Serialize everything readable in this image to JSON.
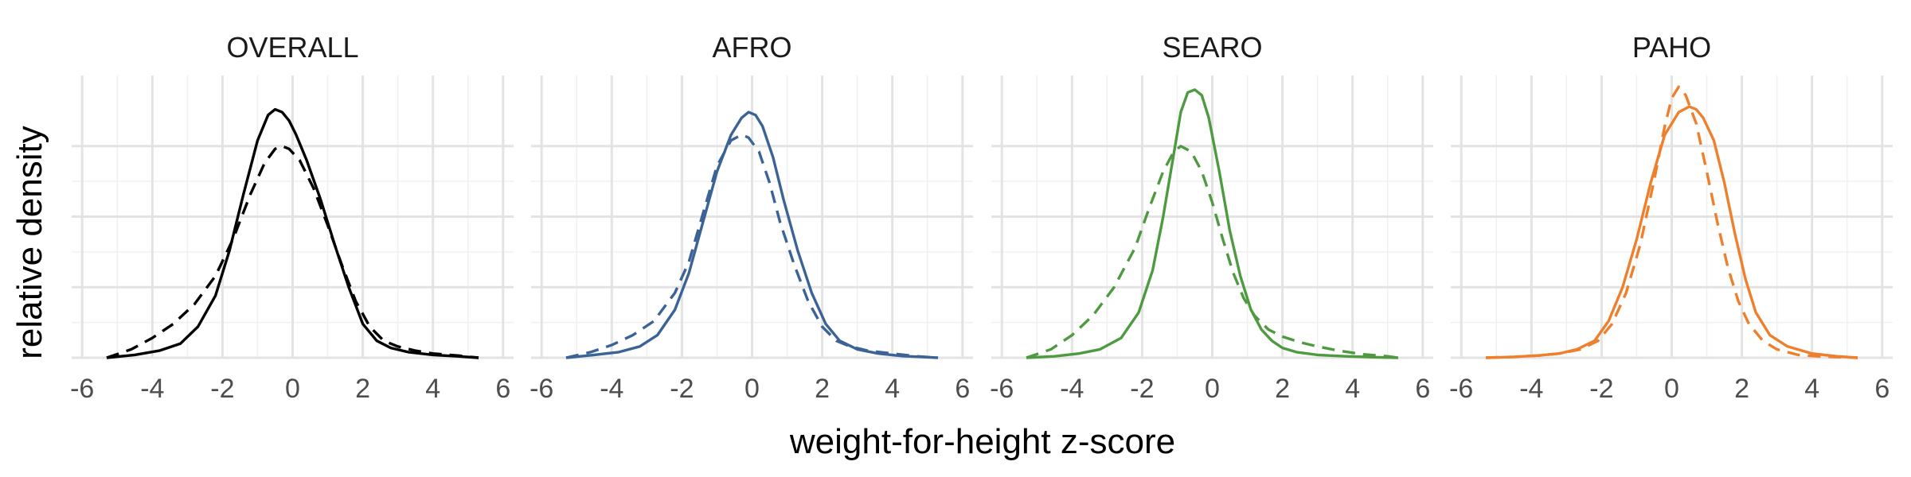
{
  "chart_data": {
    "type": "line",
    "xlabel": "weight-for-height z-score",
    "ylabel": "relative density",
    "xlim": [
      -6.3,
      6.3
    ],
    "ylim": [
      0,
      1
    ],
    "x_ticks": [
      -6,
      -4,
      -2,
      0,
      2,
      4,
      6
    ],
    "x_tick_labels": [
      "-6",
      "-4",
      "-2",
      "0",
      "2",
      "4",
      "6"
    ],
    "y_ticks": [
      0.25,
      0.5,
      0.75
    ],
    "y_tick_labels_shown": false,
    "grid": true,
    "legend": "none",
    "panels": [
      {
        "title": "OVERALL",
        "color": "#000000",
        "series": [
          {
            "style": "solid",
            "x": [
              -5.3,
              -4.5,
              -3.8,
              -3.2,
              -2.7,
              -2.2,
              -1.8,
              -1.4,
              -1.0,
              -0.7,
              -0.5,
              -0.3,
              -0.1,
              0.1,
              0.4,
              0.8,
              1.2,
              1.6,
              2.0,
              2.4,
              2.8,
              3.3,
              4.0,
              4.7,
              5.3
            ],
            "y": [
              0.0,
              0.01,
              0.025,
              0.05,
              0.11,
              0.22,
              0.38,
              0.58,
              0.77,
              0.86,
              0.88,
              0.87,
              0.84,
              0.79,
              0.7,
              0.56,
              0.4,
              0.25,
              0.12,
              0.06,
              0.035,
              0.02,
              0.01,
              0.005,
              0.0
            ]
          },
          {
            "style": "dashed",
            "x": [
              -5.3,
              -4.6,
              -4.0,
              -3.4,
              -2.8,
              -2.2,
              -1.7,
              -1.2,
              -0.8,
              -0.5,
              -0.3,
              -0.1,
              0.2,
              0.6,
              1.0,
              1.4,
              1.8,
              2.2,
              2.6,
              3.0,
              3.5,
              4.0,
              4.7,
              5.3
            ],
            "y": [
              0.0,
              0.03,
              0.07,
              0.12,
              0.19,
              0.29,
              0.42,
              0.58,
              0.69,
              0.74,
              0.75,
              0.74,
              0.7,
              0.6,
              0.47,
              0.33,
              0.2,
              0.11,
              0.06,
              0.04,
              0.025,
              0.015,
              0.008,
              0.0
            ]
          }
        ]
      },
      {
        "title": "AFRO",
        "color": "#3c6396",
        "series": [
          {
            "style": "solid",
            "x": [
              -5.3,
              -4.5,
              -3.8,
              -3.2,
              -2.7,
              -2.2,
              -1.8,
              -1.4,
              -1.0,
              -0.6,
              -0.3,
              -0.1,
              0.1,
              0.3,
              0.6,
              0.9,
              1.3,
              1.7,
              2.1,
              2.5,
              3.0,
              3.6,
              4.3,
              5.0,
              5.3
            ],
            "y": [
              0.0,
              0.01,
              0.02,
              0.04,
              0.08,
              0.17,
              0.3,
              0.48,
              0.66,
              0.79,
              0.85,
              0.87,
              0.86,
              0.82,
              0.71,
              0.56,
              0.38,
              0.23,
              0.12,
              0.06,
              0.03,
              0.015,
              0.006,
              0.002,
              0.0
            ]
          },
          {
            "style": "dashed",
            "x": [
              -5.3,
              -4.6,
              -4.0,
              -3.4,
              -2.8,
              -2.2,
              -1.8,
              -1.4,
              -1.0,
              -0.6,
              -0.3,
              -0.1,
              0.2,
              0.5,
              0.8,
              1.2,
              1.6,
              2.0,
              2.4,
              2.8,
              3.3,
              4.0,
              4.7,
              5.3
            ],
            "y": [
              0.0,
              0.02,
              0.045,
              0.08,
              0.13,
              0.23,
              0.34,
              0.51,
              0.68,
              0.77,
              0.79,
              0.78,
              0.73,
              0.62,
              0.48,
              0.33,
              0.2,
              0.11,
              0.06,
              0.04,
              0.025,
              0.015,
              0.005,
              0.0
            ]
          }
        ]
      },
      {
        "title": "SEARO",
        "color": "#4e9a40",
        "series": [
          {
            "style": "solid",
            "x": [
              -5.3,
              -4.5,
              -3.8,
              -3.2,
              -2.6,
              -2.1,
              -1.7,
              -1.4,
              -1.1,
              -0.9,
              -0.7,
              -0.5,
              -0.3,
              -0.1,
              0.2,
              0.5,
              0.8,
              1.1,
              1.4,
              1.7,
              2.0,
              2.4,
              3.0,
              3.8,
              4.6,
              5.3
            ],
            "y": [
              0.0,
              0.005,
              0.015,
              0.03,
              0.07,
              0.16,
              0.31,
              0.5,
              0.72,
              0.87,
              0.94,
              0.95,
              0.93,
              0.85,
              0.66,
              0.45,
              0.29,
              0.17,
              0.1,
              0.06,
              0.035,
              0.02,
              0.01,
              0.005,
              0.002,
              0.0
            ]
          },
          {
            "style": "dashed",
            "x": [
              -5.3,
              -4.6,
              -4.0,
              -3.4,
              -2.8,
              -2.2,
              -1.8,
              -1.4,
              -1.1,
              -0.9,
              -0.6,
              -0.3,
              0.0,
              0.3,
              0.6,
              0.9,
              1.2,
              1.6,
              2.0,
              2.5,
              3.0,
              3.6,
              4.3,
              5.0,
              5.3
            ],
            "y": [
              0.0,
              0.03,
              0.08,
              0.15,
              0.25,
              0.39,
              0.53,
              0.66,
              0.73,
              0.75,
              0.73,
              0.66,
              0.55,
              0.42,
              0.3,
              0.21,
              0.15,
              0.1,
              0.075,
              0.055,
              0.04,
              0.025,
              0.012,
              0.005,
              0.0
            ]
          }
        ]
      },
      {
        "title": "PAHO",
        "color": "#ee7f2d",
        "series": [
          {
            "style": "solid",
            "x": [
              -5.3,
              -4.5,
              -3.8,
              -3.2,
              -2.7,
              -2.2,
              -1.8,
              -1.4,
              -1.0,
              -0.6,
              -0.2,
              0.2,
              0.5,
              0.7,
              0.9,
              1.2,
              1.5,
              1.8,
              2.1,
              2.4,
              2.8,
              3.3,
              4.0,
              4.7,
              5.3
            ],
            "y": [
              0.0,
              0.003,
              0.008,
              0.015,
              0.03,
              0.06,
              0.13,
              0.25,
              0.42,
              0.62,
              0.79,
              0.87,
              0.89,
              0.88,
              0.85,
              0.77,
              0.62,
              0.44,
              0.28,
              0.16,
              0.08,
              0.04,
              0.015,
              0.005,
              0.0
            ]
          },
          {
            "style": "dashed",
            "x": [
              -5.3,
              -4.5,
              -3.8,
              -3.2,
              -2.6,
              -2.1,
              -1.7,
              -1.3,
              -0.9,
              -0.5,
              -0.2,
              0.0,
              0.2,
              0.4,
              0.7,
              1.0,
              1.3,
              1.6,
              1.9,
              2.2,
              2.6,
              3.0,
              3.6,
              4.3,
              5.3
            ],
            "y": [
              0.0,
              0.003,
              0.008,
              0.015,
              0.03,
              0.06,
              0.12,
              0.23,
              0.4,
              0.63,
              0.82,
              0.92,
              0.96,
              0.93,
              0.83,
              0.66,
              0.48,
              0.32,
              0.2,
              0.12,
              0.06,
              0.03,
              0.01,
              0.004,
              0.0
            ]
          }
        ]
      }
    ]
  }
}
